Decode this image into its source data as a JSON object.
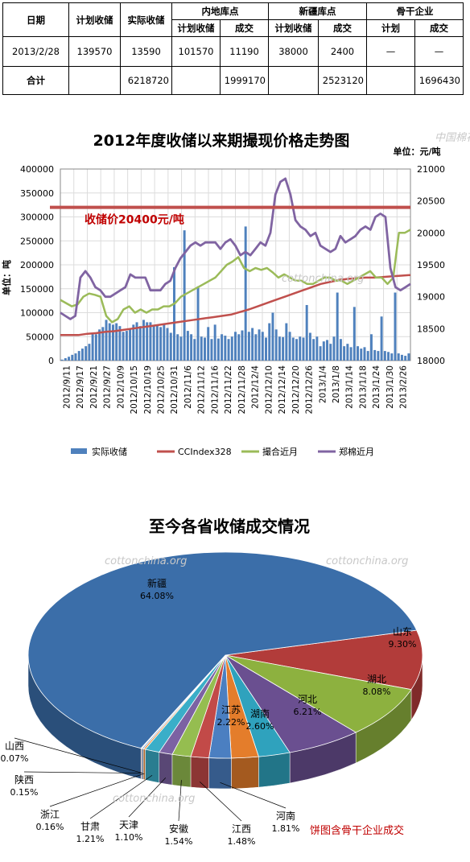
{
  "table": {
    "header_top": [
      "日期",
      "计划收储",
      "实际收储",
      "内地库点",
      "新疆库点",
      "骨干企业"
    ],
    "header_sub": [
      "计划收储",
      "成交",
      "计划收储",
      "成交",
      "计划",
      "成交"
    ],
    "rows": [
      {
        "cells": [
          "2013/2/28",
          "139570",
          "13590",
          "101570",
          "11190",
          "38000",
          "2400",
          "—",
          "—"
        ]
      },
      {
        "cells": [
          "合计",
          "",
          "6218720",
          "",
          "1999170",
          "",
          "2523120",
          "",
          "1696430"
        ]
      }
    ]
  },
  "watermark": "cottonchina.org",
  "watermark_logo": "中国棉花信息网",
  "line_chart_data": {
    "type": "bar+line",
    "title": "2012年度收储以来期撮现价格走势图",
    "unit": "单位：元/吨",
    "ylabel": "单位：吨",
    "ylim": [
      0,
      400000
    ],
    "y2lim": [
      18000,
      21000
    ],
    "yticks": [
      "0",
      "50000",
      "100000",
      "150000",
      "200000",
      "250000",
      "300000",
      "350000",
      "400000"
    ],
    "y2ticks": [
      "18000",
      "18500",
      "19000",
      "19500",
      "20000",
      "20500",
      "21000"
    ],
    "xticks": [
      "2012/9/11",
      "2012/9/17",
      "2012/9/21",
      "2012/9/27",
      "2012/10/9",
      "2012/10/15",
      "2012/10/19",
      "2012/10/25",
      "2012/10/31",
      "2012/11/6",
      "2012/11/12",
      "2012/11/16",
      "2012/11/22",
      "2012/11/28",
      "2012/12/4",
      "2012/12/10",
      "2012/12/14",
      "2012/12/20",
      "2012/12/26",
      "2013/1/4",
      "2013/1/8",
      "2013/1/14",
      "2013/1/18",
      "2013/1/24",
      "2013/1/30",
      "2013/2/26"
    ],
    "reference_line": {
      "label": "收储价20400元/吨",
      "value": 20400,
      "color": "#c0504d"
    },
    "legend": [
      "实际收储",
      "CCIndex328",
      "撮合近月",
      "郑棉近月"
    ],
    "colors": {
      "bars": "#4f81bd",
      "cc": "#c0504d",
      "match": "#9bbb59",
      "zheng": "#8064a2"
    },
    "bars": [
      2000,
      5000,
      8000,
      12000,
      15000,
      20000,
      25000,
      30000,
      35000,
      55000,
      55000,
      65000,
      70000,
      85000,
      78000,
      75000,
      78000,
      72000,
      60000,
      62000,
      65000,
      75000,
      80000,
      72000,
      85000,
      80000,
      80000,
      72000,
      75000,
      70000,
      75000,
      68000,
      58000,
      195000,
      55000,
      50000,
      272000,
      62000,
      55000,
      45000,
      155000,
      50000,
      48000,
      70000,
      45000,
      75000,
      46000,
      55000,
      52000,
      45000,
      50000,
      60000,
      55000,
      63000,
      280000,
      60000,
      68000,
      55000,
      65000,
      60000,
      48000,
      78000,
      100000,
      65000,
      50000,
      49000,
      78000,
      60000,
      48000,
      45000,
      50000,
      48000,
      116000,
      58000,
      45000,
      50000,
      30000,
      40000,
      43000,
      35000,
      50000,
      142000,
      45000,
      30000,
      35000,
      28000,
      112000,
      30000,
      25000,
      28000,
      20000,
      55000,
      22000,
      20000,
      92000,
      20000,
      18000,
      15000,
      142000,
      15000,
      12000,
      10000,
      15000
    ],
    "cc_index": [
      18400,
      18400,
      18400,
      18420,
      18430,
      18450,
      18460,
      18480,
      18500,
      18520,
      18540,
      18560,
      18580,
      18600,
      18620,
      18640,
      18660,
      18680,
      18700,
      18720,
      18760,
      18800,
      18850,
      18900,
      18950,
      19000,
      19050,
      19100,
      19150,
      19200,
      19230,
      19260,
      19280,
      19290,
      19300,
      19300,
      19310,
      19320,
      19330,
      19340
    ],
    "match_near": [
      18950,
      18900,
      18850,
      18880,
      19000,
      19050,
      19030,
      19000,
      18700,
      18600,
      18650,
      18800,
      18850,
      18750,
      18800,
      18750,
      18800,
      18800,
      18850,
      18850,
      18900,
      19000,
      19050,
      19100,
      19150,
      19200,
      19250,
      19300,
      19400,
      19500,
      19550,
      19620,
      19450,
      19400,
      19450,
      19420,
      19450,
      19380,
      19300,
      19350,
      19300,
      19250,
      19250,
      19200,
      19200,
      19250,
      19300,
      19300,
      19250,
      19250,
      19200,
      19250,
      19300,
      19350,
      19400,
      19300,
      19300,
      19200,
      19300,
      20000,
      20000,
      20050
    ],
    "zheng_near": [
      18750,
      18700,
      18650,
      18700,
      19300,
      19400,
      19300,
      19150,
      19100,
      19000,
      19000,
      19050,
      19100,
      19150,
      19350,
      19300,
      19300,
      19300,
      19100,
      19100,
      19100,
      19200,
      19250,
      19450,
      19600,
      19700,
      19800,
      19850,
      19800,
      19850,
      19850,
      19850,
      19750,
      19850,
      19900,
      19800,
      19650,
      19700,
      19650,
      19750,
      19850,
      19800,
      20000,
      20600,
      20800,
      20850,
      20600,
      20200,
      20100,
      20050,
      19950,
      20000,
      19800,
      19750,
      19700,
      19750,
      19950,
      19850,
      19900,
      19950,
      20050,
      20100,
      20050,
      20250,
      20300,
      20250,
      19450,
      19150,
      19100,
      19150,
      19200
    ]
  },
  "pie_chart_data": {
    "type": "pie",
    "title": "至今各省收储成交情况",
    "note": "饼图含骨干企业成交",
    "slices": [
      {
        "name": "新疆",
        "pct": 64.08,
        "label": "64.08%",
        "color": "#3b6ea9"
      },
      {
        "name": "山东",
        "pct": 9.3,
        "label": "9.30%",
        "color": "#b23c3a"
      },
      {
        "name": "湖北",
        "pct": 8.08,
        "label": "8.08%",
        "color": "#8db13f"
      },
      {
        "name": "河北",
        "pct": 6.21,
        "label": "6.21%",
        "color": "#6a4f90"
      },
      {
        "name": "湖南",
        "pct": 2.6,
        "label": "2.60%",
        "color": "#2fa2bd"
      },
      {
        "name": "江苏",
        "pct": 2.22,
        "label": "2.22%",
        "color": "#e47d2b"
      },
      {
        "name": "河南",
        "pct": 1.81,
        "label": "1.81%",
        "color": "#4b7fc1"
      },
      {
        "name": "江西",
        "pct": 1.48,
        "label": "1.48%",
        "color": "#c24a48"
      },
      {
        "name": "安徽",
        "pct": 1.54,
        "label": "1.54%",
        "color": "#95bd50"
      },
      {
        "name": "天津",
        "pct": 1.1,
        "label": "1.10%",
        "color": "#7c62a3"
      },
      {
        "name": "甘肃",
        "pct": 1.21,
        "label": "1.21%",
        "color": "#3aaec8"
      },
      {
        "name": "浙江",
        "pct": 0.16,
        "label": "0.16%",
        "color": "#f08a35"
      },
      {
        "name": "陕西",
        "pct": 0.15,
        "label": "0.15%",
        "color": "#8aaad3"
      },
      {
        "name": "山西",
        "pct": 0.07,
        "label": "0.07%",
        "color": "#d68c8b"
      }
    ]
  }
}
